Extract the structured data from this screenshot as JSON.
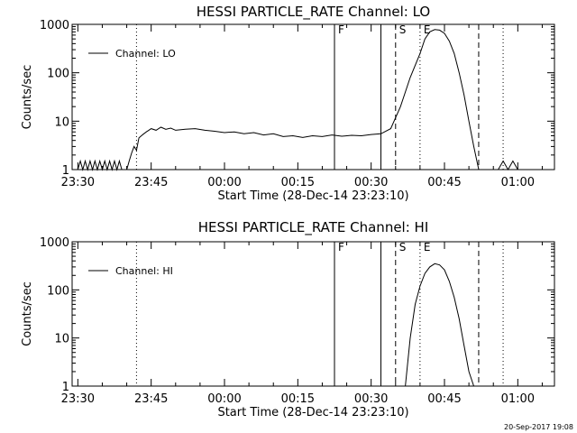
{
  "timestamp": "20-Sep-2017 19:08",
  "chart_data": [
    {
      "type": "line",
      "title": "HESSI PARTICLE_RATE Channel: LO",
      "xlabel": "Start Time (28-Dec-14 23:23:10)",
      "ylabel": "Counts/sec",
      "log_y": true,
      "ylim": [
        1,
        1000
      ],
      "xlim_minutes": [
        -1.17,
        97.5
      ],
      "x_ticks": [
        "23:30",
        "23:45",
        "00:00",
        "00:15",
        "00:30",
        "00:45",
        "01:00"
      ],
      "y_ticks": [
        "1",
        "10",
        "100",
        "1000"
      ],
      "legend": {
        "label": "Channel: LO",
        "position": "top-left"
      },
      "markers": [
        {
          "label": "F",
          "time": "00:22.5",
          "style": "solid"
        },
        {
          "label": "",
          "time": "00:32",
          "style": "solid"
        },
        {
          "label": "S",
          "time": "00:35",
          "style": "dashed"
        },
        {
          "label": "E",
          "time": "00:40",
          "style": "dotted"
        },
        {
          "label": "",
          "time": "00:52",
          "style": "dashed"
        },
        {
          "label": "",
          "time": "00:57",
          "style": "dotted"
        },
        {
          "label": "",
          "time": "23:42",
          "style": "dotted"
        }
      ],
      "series": [
        {
          "x_minutes": [
            -1.2,
            0,
            0.5,
            1,
            1.5,
            2,
            2.5,
            3,
            3.5,
            4,
            4.5,
            5,
            5.5,
            6,
            6.5,
            7,
            7.5,
            8,
            8.5,
            9,
            9.5,
            10,
            10.5,
            11,
            11.5,
            12,
            12.5,
            13,
            13.5,
            14,
            14.5,
            15,
            16,
            17,
            18,
            19,
            20,
            22,
            24,
            26,
            28,
            30,
            32,
            34,
            36,
            38,
            40,
            42,
            44,
            46,
            48,
            50,
            52,
            54,
            56,
            58,
            60,
            62,
            64,
            66,
            68,
            70,
            71,
            72,
            73,
            74,
            75,
            76,
            77,
            78,
            79,
            80,
            81,
            82,
            83,
            84,
            85,
            86,
            87,
            88,
            89,
            90,
            91,
            92,
            93
          ],
          "y": [
            1,
            1,
            1.5,
            1,
            1.5,
            1,
            1.5,
            1,
            1.5,
            1,
            1.5,
            1,
            1.5,
            1,
            1.5,
            1,
            1.5,
            1,
            1.5,
            1,
            1,
            1,
            1.5,
            2.2,
            3,
            2.5,
            4.5,
            5,
            5.5,
            6,
            6.5,
            7,
            6.5,
            7.5,
            6.8,
            7.2,
            6.5,
            6.8,
            7.0,
            6.5,
            6.2,
            5.8,
            6.0,
            5.5,
            5.8,
            5.2,
            5.5,
            4.8,
            5.0,
            4.6,
            5.0,
            4.8,
            5.2,
            4.9,
            5.1,
            5.0,
            5.3,
            5.5,
            7,
            20,
            80,
            250,
            500,
            700,
            780,
            760,
            650,
            450,
            250,
            100,
            35,
            10,
            3,
            1,
            null,
            null,
            null,
            1,
            1.5,
            1,
            1.5,
            1,
            null,
            null,
            null
          ]
        }
      ]
    },
    {
      "type": "line",
      "title": "HESSI PARTICLE_RATE Channel: HI",
      "xlabel": "Start Time (28-Dec-14 23:23:10)",
      "ylabel": "Counts/sec",
      "log_y": true,
      "ylim": [
        1,
        1000
      ],
      "xlim_minutes": [
        -1.17,
        97.5
      ],
      "x_ticks": [
        "23:30",
        "23:45",
        "00:00",
        "00:15",
        "00:30",
        "00:45",
        "01:00"
      ],
      "y_ticks": [
        "1",
        "10",
        "100",
        "1000"
      ],
      "legend": {
        "label": "Channel: HI",
        "position": "top-left"
      },
      "markers": [
        {
          "label": "F",
          "time": "00:22.5",
          "style": "solid"
        },
        {
          "label": "",
          "time": "00:32",
          "style": "solid"
        },
        {
          "label": "S",
          "time": "00:35",
          "style": "dashed"
        },
        {
          "label": "E",
          "time": "00:40",
          "style": "dotted"
        },
        {
          "label": "",
          "time": "00:52",
          "style": "dashed"
        },
        {
          "label": "",
          "time": "00:57",
          "style": "dotted"
        },
        {
          "label": "",
          "time": "23:42",
          "style": "dotted"
        }
      ],
      "series": [
        {
          "x_minutes": [
            67,
            68,
            69,
            70,
            71,
            72,
            73,
            74,
            75,
            76,
            77,
            78,
            79,
            80,
            81
          ],
          "y": [
            1,
            10,
            50,
            120,
            220,
            300,
            350,
            330,
            260,
            150,
            70,
            25,
            7,
            2,
            1
          ]
        }
      ]
    }
  ]
}
